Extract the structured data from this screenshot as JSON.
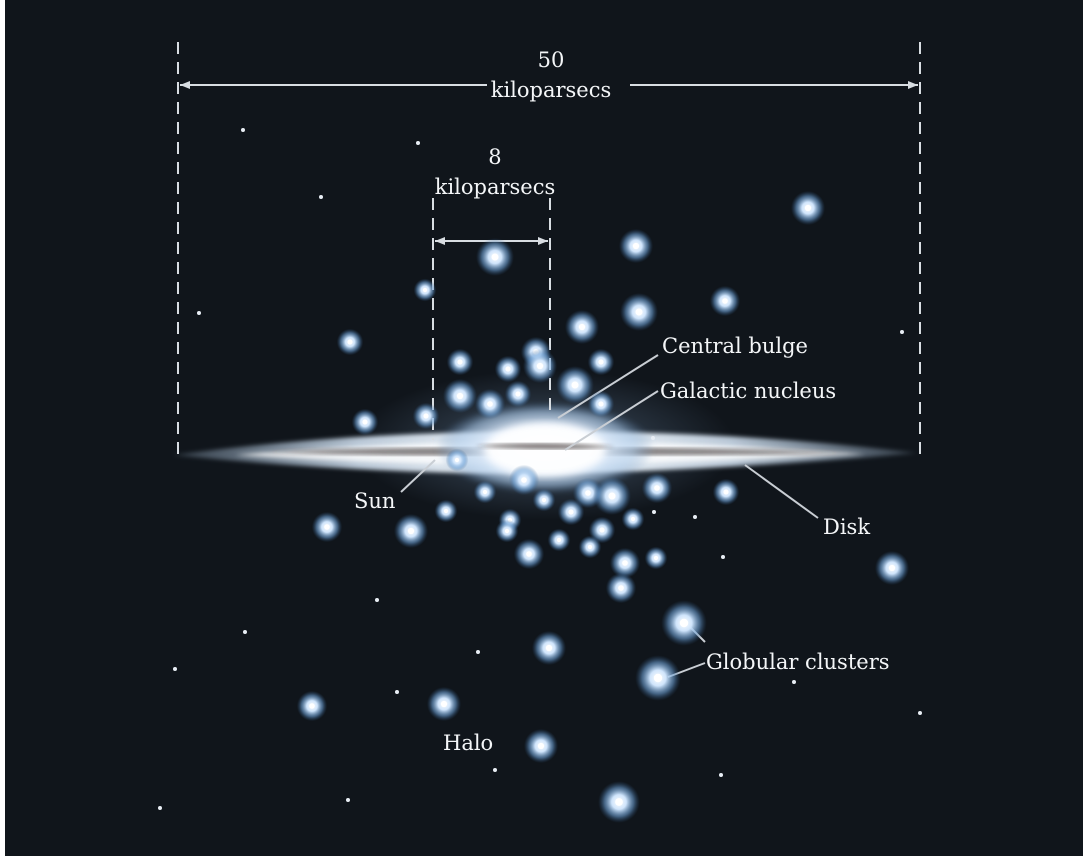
{
  "diagram": {
    "scale_large": {
      "value": "50",
      "unit": "kiloparsecs"
    },
    "scale_small": {
      "value": "8",
      "unit": "kiloparsecs"
    },
    "labels": {
      "central_bulge": "Central bulge",
      "galactic_nucleus": "Galactic nucleus",
      "sun": "Sun",
      "disk": "Disk",
      "globular_clusters": "Globular clusters",
      "halo": "Halo"
    }
  },
  "colors": {
    "background": "#10151b",
    "cluster": "#9fc8f0",
    "disk_core": "#ffffff",
    "dust_lane": "#2a2420",
    "text": "#f4f6f8",
    "annotation_lines": "#d8dde2"
  }
}
